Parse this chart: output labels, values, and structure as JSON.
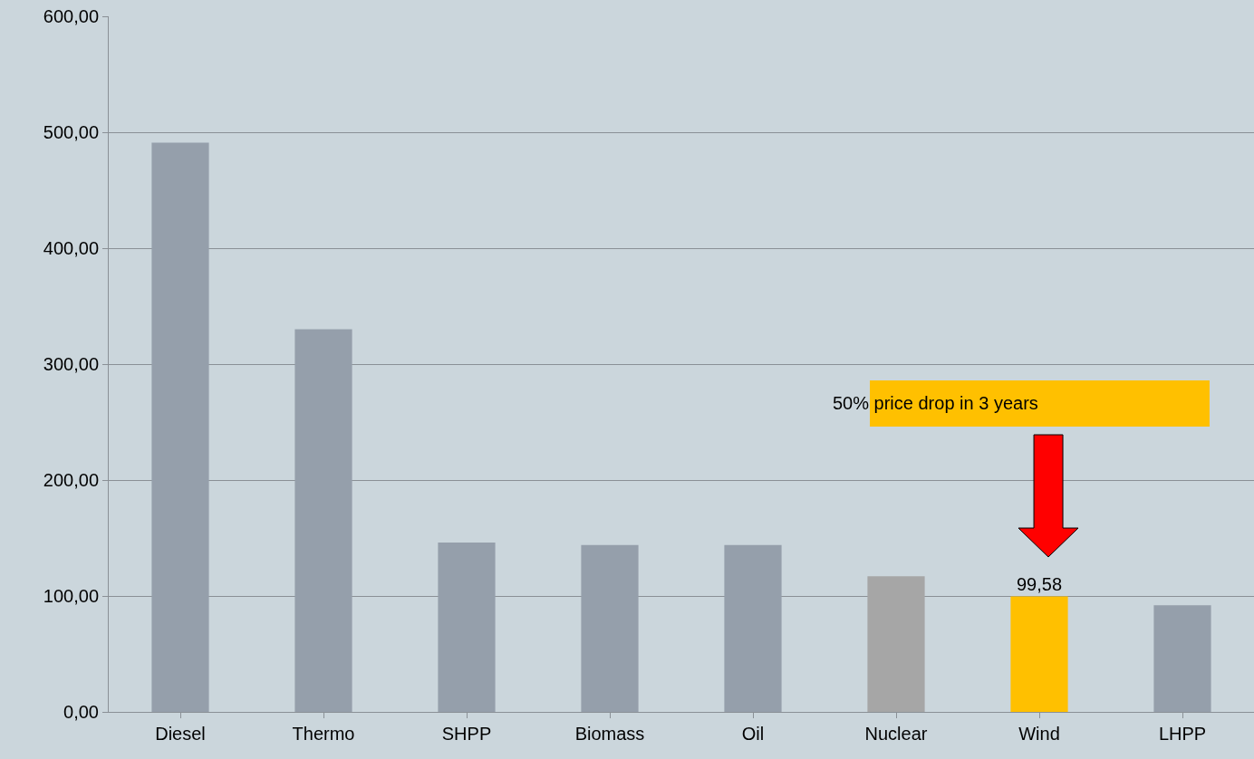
{
  "chart_data": {
    "type": "bar",
    "categories": [
      "Diesel",
      "Thermo",
      "SHPP",
      "Biomass",
      "Oil",
      "Nuclear",
      "Wind",
      "LHPP"
    ],
    "values": [
      491,
      330,
      146,
      144,
      144,
      117,
      99.58,
      92
    ],
    "colors": [
      "#959fab",
      "#959fab",
      "#959fab",
      "#959fab",
      "#959fab",
      "#a6a6a6",
      "#ffc000",
      "#959fab"
    ],
    "value_labels": [
      null,
      null,
      null,
      null,
      null,
      null,
      "99,58",
      null
    ],
    "ylim": [
      0,
      600
    ],
    "yticks": [
      {
        "value": 0,
        "label": "0,00"
      },
      {
        "value": 100,
        "label": "100,00"
      },
      {
        "value": 200,
        "label": "200,00"
      },
      {
        "value": 300,
        "label": "300,00"
      },
      {
        "value": 400,
        "label": "400,00"
      },
      {
        "value": 500,
        "label": "500,00"
      },
      {
        "value": 600,
        "label": "600,00"
      }
    ],
    "annotations": [
      "50% price drop in 3 years"
    ],
    "grid": "y",
    "legend": false
  }
}
